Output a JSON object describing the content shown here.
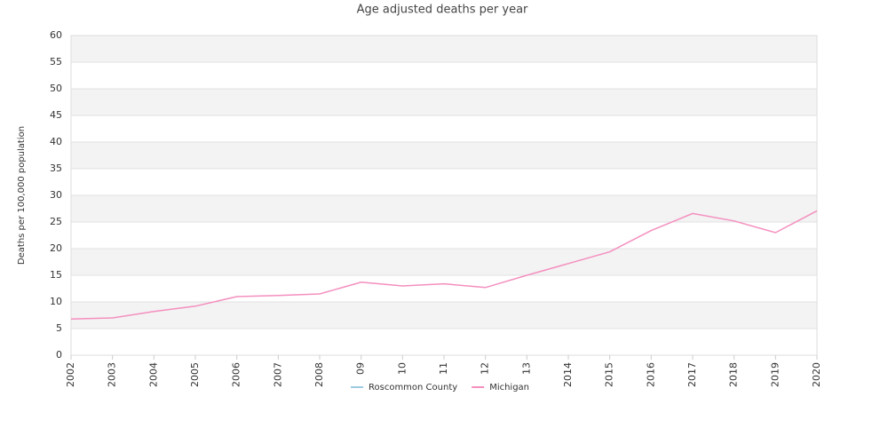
{
  "chart_data": {
    "type": "line",
    "title": "Age adjusted deaths per year",
    "y_label": "Deaths per 100,000 population",
    "categories": [
      "2002",
      "2003",
      "2004",
      "2005",
      "2006",
      "2007",
      "2008",
      "09",
      "10",
      "11",
      "12",
      "13",
      "2014",
      "2015",
      "2016",
      "2017",
      "2018",
      "2019",
      "2020"
    ],
    "series": [
      {
        "name": "Roscommon County",
        "color": "#9ecae1",
        "values": [
          null,
          null,
          null,
          null,
          null,
          null,
          null,
          null,
          null,
          null,
          null,
          null,
          null,
          null,
          null,
          null,
          null,
          null,
          null
        ]
      },
      {
        "name": "Michigan",
        "color": "#f48fbf",
        "values": [
          6.8,
          7.0,
          8.2,
          9.2,
          11.0,
          11.2,
          11.5,
          13.7,
          13.0,
          13.4,
          12.7,
          15.0,
          17.2,
          19.4,
          23.4,
          26.6,
          25.2,
          23.0,
          27.1
        ]
      }
    ],
    "ylim": [
      0,
      60
    ],
    "yticks": [
      0,
      5,
      10,
      15,
      20,
      25,
      30,
      35,
      40,
      45,
      50,
      55,
      60
    ],
    "grid": true
  }
}
